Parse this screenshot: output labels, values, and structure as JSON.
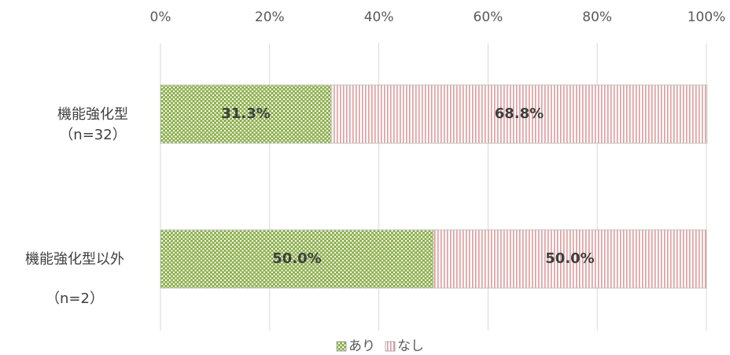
{
  "chart_data": {
    "type": "stacked-bar-horizontal",
    "categories": [
      [
        "機能強化型",
        "（n=32）"
      ],
      [
        "機能強化型以外",
        "（n=2）"
      ]
    ],
    "series": [
      {
        "name": "あり",
        "color": "#8cb04c",
        "values": [
          31.3,
          50.0
        ],
        "value_labels": [
          "31.3%",
          "50.0%"
        ]
      },
      {
        "name": "なし",
        "color": "#e39a9a",
        "values": [
          68.8,
          50.0
        ],
        "value_labels": [
          "68.8%",
          "50.0%"
        ]
      }
    ],
    "xlim": [
      0,
      100
    ],
    "xticks": [
      {
        "value": 0,
        "label": "0%"
      },
      {
        "value": 20,
        "label": "20%"
      },
      {
        "value": 40,
        "label": "40%"
      },
      {
        "value": 60,
        "label": "60%"
      },
      {
        "value": 80,
        "label": "80%"
      },
      {
        "value": 100,
        "label": "100%"
      }
    ],
    "grid": true,
    "legend": "bottom"
  }
}
